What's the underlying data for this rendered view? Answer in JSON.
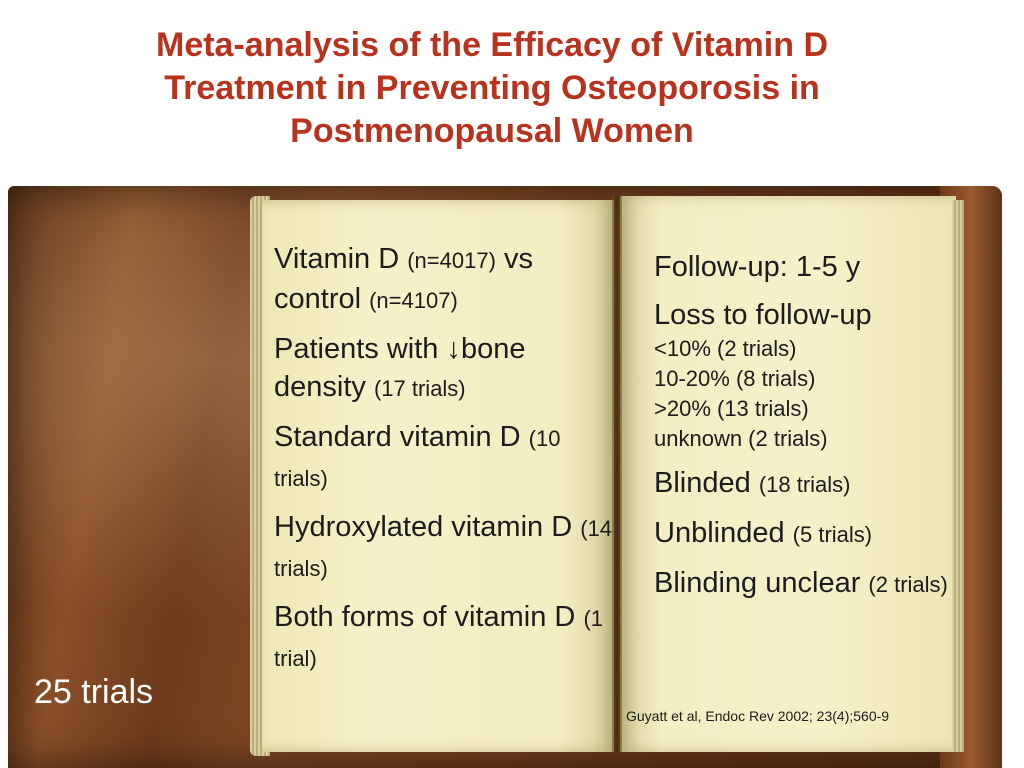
{
  "slide": {
    "title_lines": [
      "Meta-analysis of the Efficacy of Vitamin D",
      "Treatment in Preventing Osteoporosis in",
      "Postmenopausal Women"
    ],
    "trials_note": "25 trials",
    "citation": "Guyatt et al, Endoc Rev 2002; 23(4);560-9",
    "colors": {
      "title": "#b8321e",
      "text": "#1c1c1c"
    }
  },
  "left_page": {
    "b1": {
      "a": "Vitamin D ",
      "b": "(n=4017)",
      "c": " vs control ",
      "d": "(n=4107)"
    },
    "b2": {
      "a": "Patients with ",
      "arrow": "↓",
      "b": "bone density ",
      "c": "(17 trials)"
    },
    "b3": {
      "a": "Standard vitamin D ",
      "b": "(10 trials)"
    },
    "b4": {
      "a": "Hydroxylated vitamin D ",
      "b": "(14 trials)"
    },
    "b5": {
      "a": "Both forms of vitamin D ",
      "b": "(1 trial)"
    }
  },
  "right_page": {
    "followup": "Follow-up: 1-5 y",
    "loss_heading": "Loss to follow-up",
    "loss_items": [
      "<10% (2 trials)",
      "10-20% (8 trials)",
      ">20% (13 trials)",
      "unknown (2 trials)"
    ],
    "blinded": {
      "a": "Blinded ",
      "b": "(18 trials)"
    },
    "unblinded": {
      "a": "Unblinded ",
      "b": "(5 trials)"
    },
    "unclear": {
      "a": "Blinding unclear ",
      "b": "(2 trials)"
    }
  }
}
